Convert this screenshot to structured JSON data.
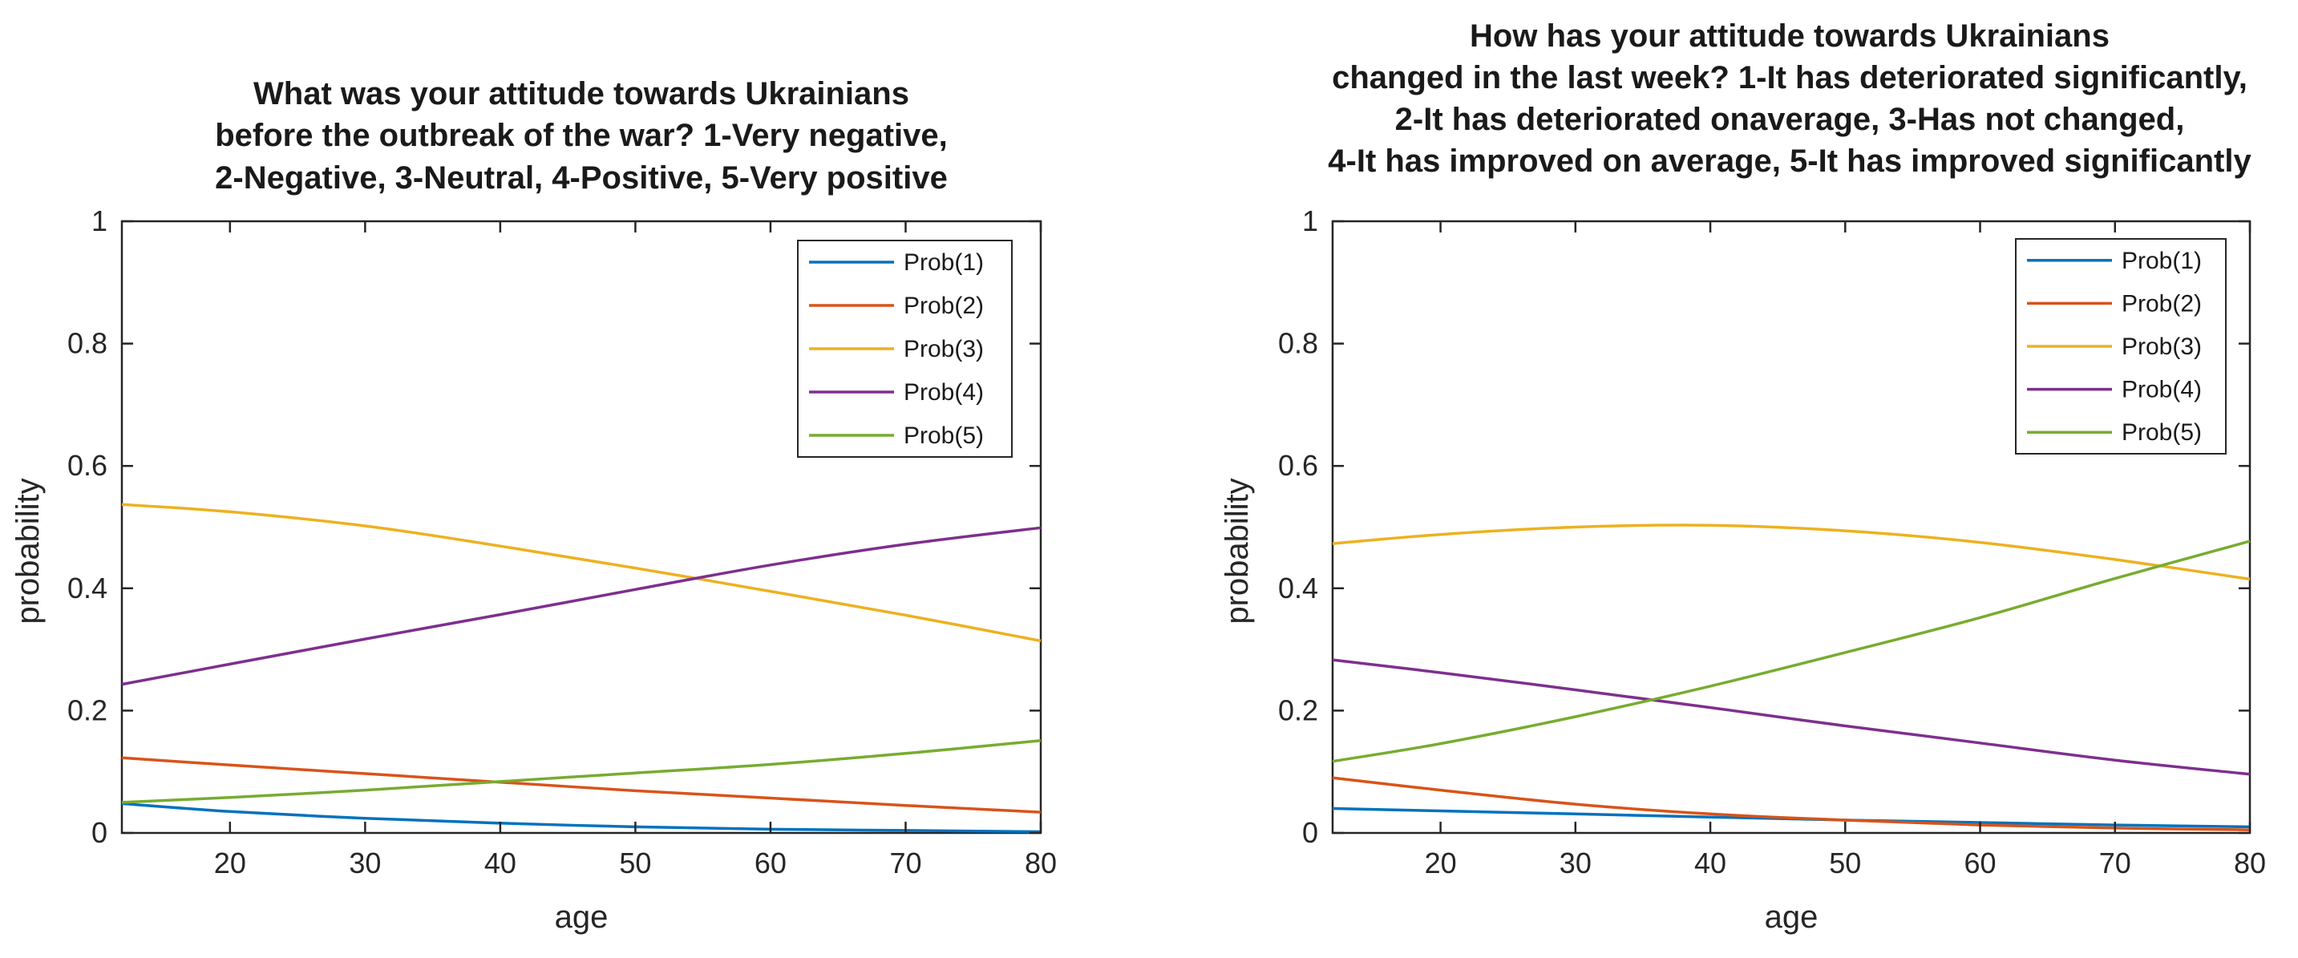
{
  "chart_data": [
    {
      "type": "line",
      "title": [
        "What was your attitude towards Ukrainians",
        "before the outbreak of the war? 1-Very negative,",
        "2-Negative, 3-Neutral, 4-Positive, 5-Very positive"
      ],
      "xlabel": "age",
      "ylabel": "probability",
      "xlim": [
        12,
        80
      ],
      "ylim": [
        0,
        1
      ],
      "xticks": [
        20,
        30,
        40,
        50,
        60,
        70,
        80
      ],
      "yticks": [
        0,
        0.2,
        0.4,
        0.6,
        0.8,
        1
      ],
      "ytick_labels": [
        "0",
        "0.2",
        "0.4",
        "0.6",
        "0.8",
        "1"
      ],
      "legend_position": "top-right",
      "x": [
        12,
        20,
        30,
        40,
        50,
        60,
        70,
        80
      ],
      "series": [
        {
          "name": "Prob(1)",
          "color": "#0072BD",
          "values": [
            0.048,
            0.035,
            0.024,
            0.016,
            0.01,
            0.006,
            0.004,
            0.002
          ]
        },
        {
          "name": "Prob(2)",
          "color": "#D95319",
          "values": [
            0.123,
            0.111,
            0.097,
            0.083,
            0.069,
            0.057,
            0.045,
            0.034
          ]
        },
        {
          "name": "Prob(3)",
          "color": "#EDB120",
          "values": [
            0.537,
            0.525,
            0.502,
            0.469,
            0.433,
            0.395,
            0.356,
            0.314
          ]
        },
        {
          "name": "Prob(4)",
          "color": "#7E2F8E",
          "values": [
            0.243,
            0.276,
            0.317,
            0.357,
            0.398,
            0.438,
            0.472,
            0.499
          ]
        },
        {
          "name": "Prob(5)",
          "color": "#77AC30",
          "values": [
            0.05,
            0.058,
            0.07,
            0.084,
            0.098,
            0.112,
            0.13,
            0.151
          ]
        }
      ]
    },
    {
      "type": "line",
      "title": [
        "How has your attitude towards Ukrainians",
        "changed in the last week? 1-It has deteriorated significantly,",
        "2-It has deteriorated onaverage, 3-Has not changed,",
        "4-It has improved on average, 5-It has improved significantly"
      ],
      "xlabel": "age",
      "ylabel": "probability",
      "xlim": [
        12,
        80
      ],
      "ylim": [
        0,
        1
      ],
      "xticks": [
        20,
        30,
        40,
        50,
        60,
        70,
        80
      ],
      "yticks": [
        0,
        0.2,
        0.4,
        0.6,
        0.8,
        1
      ],
      "ytick_labels": [
        "0",
        "0.2",
        "0.4",
        "0.6",
        "0.8",
        "1"
      ],
      "legend_position": "top-right",
      "x": [
        12,
        20,
        30,
        40,
        50,
        60,
        70,
        80
      ],
      "series": [
        {
          "name": "Prob(1)",
          "color": "#0072BD",
          "values": [
            0.04,
            0.036,
            0.031,
            0.026,
            0.021,
            0.017,
            0.013,
            0.01
          ]
        },
        {
          "name": "Prob(2)",
          "color": "#D95319",
          "values": [
            0.09,
            0.07,
            0.047,
            0.031,
            0.021,
            0.013,
            0.008,
            0.005
          ]
        },
        {
          "name": "Prob(3)",
          "color": "#EDB120",
          "values": [
            0.473,
            0.488,
            0.5,
            0.503,
            0.494,
            0.475,
            0.447,
            0.415
          ]
        },
        {
          "name": "Prob(4)",
          "color": "#7E2F8E",
          "values": [
            0.283,
            0.262,
            0.234,
            0.205,
            0.175,
            0.147,
            0.119,
            0.096
          ]
        },
        {
          "name": "Prob(5)",
          "color": "#77AC30",
          "values": [
            0.117,
            0.146,
            0.19,
            0.24,
            0.295,
            0.352,
            0.416,
            0.477
          ]
        }
      ]
    }
  ]
}
